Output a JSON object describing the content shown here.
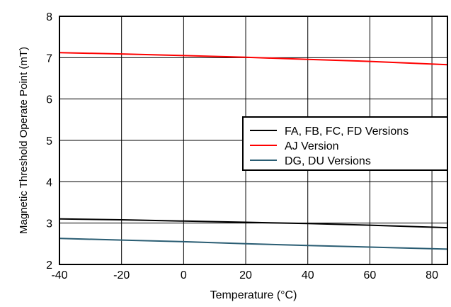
{
  "chart_data": {
    "type": "line",
    "title": "",
    "xlabel": "Temperature (°C)",
    "ylabel": "Magnetic Threshold Operate Point (mT)",
    "xlim": [
      -40,
      85
    ],
    "ylim": [
      2,
      8
    ],
    "x_ticks": [
      -40,
      -20,
      0,
      20,
      40,
      60,
      80
    ],
    "y_ticks": [
      2,
      3,
      4,
      5,
      6,
      7,
      8
    ],
    "grid": true,
    "legend_position": "right",
    "series": [
      {
        "name": "FA, FB, FC, FD Versions",
        "color": "#000000",
        "x": [
          -40,
          -20,
          0,
          20,
          40,
          60,
          85
        ],
        "y": [
          3.1,
          3.08,
          3.05,
          3.02,
          2.99,
          2.95,
          2.89
        ]
      },
      {
        "name": "AJ Version",
        "color": "#ff0000",
        "x": [
          -40,
          -20,
          0,
          20,
          40,
          60,
          85
        ],
        "y": [
          7.12,
          7.09,
          7.05,
          7.01,
          6.96,
          6.91,
          6.83
        ]
      },
      {
        "name": "DG, DU Versions",
        "color": "#2a5d73",
        "x": [
          -40,
          -20,
          0,
          20,
          40,
          60,
          85
        ],
        "y": [
          2.63,
          2.59,
          2.55,
          2.5,
          2.46,
          2.42,
          2.37
        ]
      }
    ]
  }
}
